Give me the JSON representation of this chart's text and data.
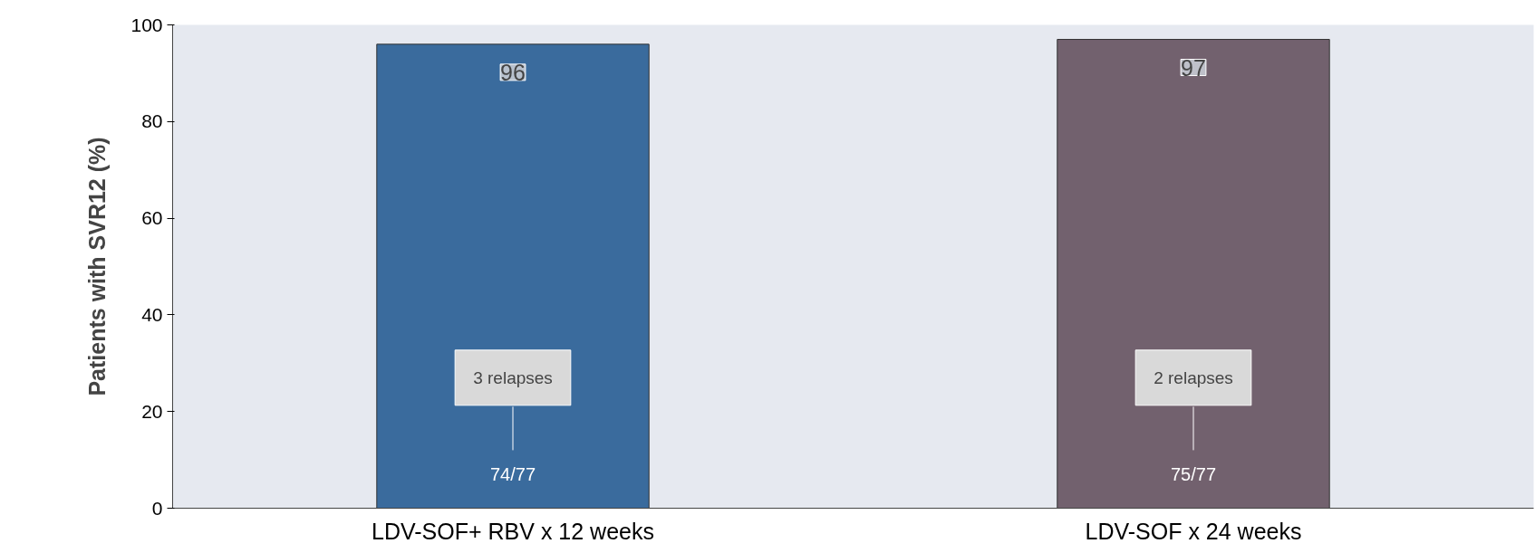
{
  "chart_data": {
    "type": "bar",
    "ylabel": "Patients with SVR12 (%)",
    "categories": [
      "LDV-SOF+ RBV x 12 weeks",
      "LDV-SOF x 24 weeks"
    ],
    "values": [
      96,
      97
    ],
    "colors": [
      "#3a6b9d",
      "#72616e"
    ],
    "ylim": [
      0,
      100
    ],
    "yticks": [
      0,
      20,
      40,
      60,
      80,
      100
    ],
    "grid": false,
    "data_labels": true,
    "annotations": [
      "3 relapses",
      "2 relapses",
      "74/77",
      "75/77"
    ]
  }
}
